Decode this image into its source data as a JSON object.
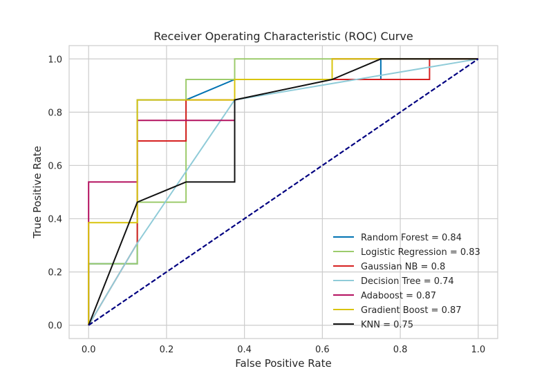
{
  "chart_data": {
    "type": "line",
    "title": "Receiver Operating Characteristic (ROC) Curve",
    "xlabel": "False Positive Rate",
    "ylabel": "True Positive Rate",
    "xlim": [
      -0.05,
      1.05
    ],
    "ylim": [
      -0.05,
      1.05
    ],
    "xticks": [
      0.0,
      0.2,
      0.4,
      0.6,
      0.8,
      1.0
    ],
    "yticks": [
      0.0,
      0.2,
      0.4,
      0.6,
      0.8,
      1.0
    ],
    "xtick_labels": [
      "0.0",
      "0.2",
      "0.4",
      "0.6",
      "0.8",
      "1.0"
    ],
    "ytick_labels": [
      "0.0",
      "0.2",
      "0.4",
      "0.6",
      "0.8",
      "1.0"
    ],
    "grid": true,
    "legend_position": "lower-right",
    "series": [
      {
        "name": "Random Forest = 0.84",
        "color": "#0072b2",
        "points": [
          [
            0,
            0
          ],
          [
            0,
            0.231
          ],
          [
            0.125,
            0.231
          ],
          [
            0.125,
            0.846
          ],
          [
            0.25,
            0.846
          ],
          [
            0.375,
            0.923
          ],
          [
            0.75,
            0.923
          ],
          [
            0.75,
            1.0
          ],
          [
            1.0,
            1.0
          ]
        ]
      },
      {
        "name": "Logistic Regression = 0.83",
        "color": "#9ccb6c",
        "points": [
          [
            0,
            0
          ],
          [
            0,
            0.231
          ],
          [
            0.125,
            0.231
          ],
          [
            0.125,
            0.462
          ],
          [
            0.25,
            0.462
          ],
          [
            0.25,
            0.923
          ],
          [
            0.375,
            0.923
          ],
          [
            0.375,
            1.0
          ],
          [
            1.0,
            1.0
          ]
        ]
      },
      {
        "name": "Gaussian NB = 0.8",
        "color": "#d62020",
        "points": [
          [
            0,
            0
          ],
          [
            0.125,
            0.308
          ],
          [
            0.125,
            0.692
          ],
          [
            0.25,
            0.692
          ],
          [
            0.25,
            0.846
          ],
          [
            0.375,
            0.846
          ],
          [
            0.375,
            0.923
          ],
          [
            0.875,
            0.923
          ],
          [
            0.875,
            1.0
          ],
          [
            1.0,
            1.0
          ]
        ]
      },
      {
        "name": "Decision Tree = 0.74",
        "color": "#8fcbd8",
        "points": [
          [
            0,
            0
          ],
          [
            0.125,
            0.308
          ],
          [
            0.375,
            0.846
          ],
          [
            1.0,
            1.0
          ]
        ]
      },
      {
        "name": "Adaboost = 0.87",
        "color": "#b3105f",
        "points": [
          [
            0,
            0
          ],
          [
            0,
            0.538
          ],
          [
            0.125,
            0.538
          ],
          [
            0.125,
            0.769
          ],
          [
            0.375,
            0.769
          ],
          [
            0.375,
            0.923
          ],
          [
            0.625,
            0.923
          ],
          [
            0.625,
            1.0
          ],
          [
            1.0,
            1.0
          ]
        ]
      },
      {
        "name": "Gradient Boost = 0.87",
        "color": "#d8c40c",
        "points": [
          [
            0,
            0
          ],
          [
            0,
            0.385
          ],
          [
            0.125,
            0.385
          ],
          [
            0.125,
            0.846
          ],
          [
            0.375,
            0.846
          ],
          [
            0.375,
            0.923
          ],
          [
            0.625,
            0.923
          ],
          [
            0.625,
            1.0
          ],
          [
            1.0,
            1.0
          ]
        ]
      },
      {
        "name": "KNN = 0.75",
        "color": "#111111",
        "points": [
          [
            0,
            0
          ],
          [
            0.125,
            0.462
          ],
          [
            0.25,
            0.538
          ],
          [
            0.375,
            0.538
          ],
          [
            0.375,
            0.846
          ],
          [
            0.625,
            0.923
          ],
          [
            0.75,
            1.0
          ],
          [
            1.0,
            1.0
          ]
        ]
      }
    ],
    "reference_line": {
      "color": "#000080",
      "style": "dashed",
      "points": [
        [
          0,
          0
        ],
        [
          1.0,
          1.0
        ]
      ]
    }
  }
}
